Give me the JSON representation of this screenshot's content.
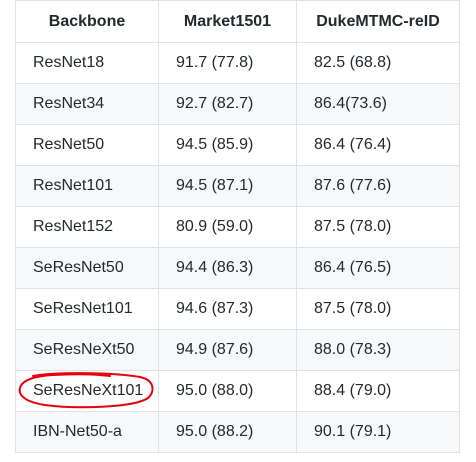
{
  "table": {
    "headers": [
      "Backbone",
      "Market1501",
      "DukeMTMC-reID"
    ],
    "rows": [
      [
        "ResNet18",
        "91.7 (77.8)",
        "82.5 (68.8)"
      ],
      [
        "ResNet34",
        "92.7 (82.7)",
        "86.4(73.6)"
      ],
      [
        "ResNet50",
        "94.5 (85.9)",
        "86.4 (76.4)"
      ],
      [
        "ResNet101",
        "94.5 (87.1)",
        "87.6 (77.6)"
      ],
      [
        "ResNet152",
        "80.9 (59.0)",
        "87.5 (78.0)"
      ],
      [
        "SeResNet50",
        "94.4 (86.3)",
        "86.4 (76.5)"
      ],
      [
        "SeResNet101",
        "94.6 (87.3)",
        "87.5 (78.0)"
      ],
      [
        "SeResNeXt50",
        "94.9 (87.6)",
        "88.0 (78.3)"
      ],
      [
        "SeResNeXt101",
        "95.0 (88.0)",
        "88.4 (79.0)"
      ],
      [
        "IBN-Net50-a",
        "95.0 (88.2)",
        "90.1 (79.1)"
      ]
    ]
  },
  "annotation": {
    "circle_color": "#e8000b",
    "highlighted_row": 8
  }
}
